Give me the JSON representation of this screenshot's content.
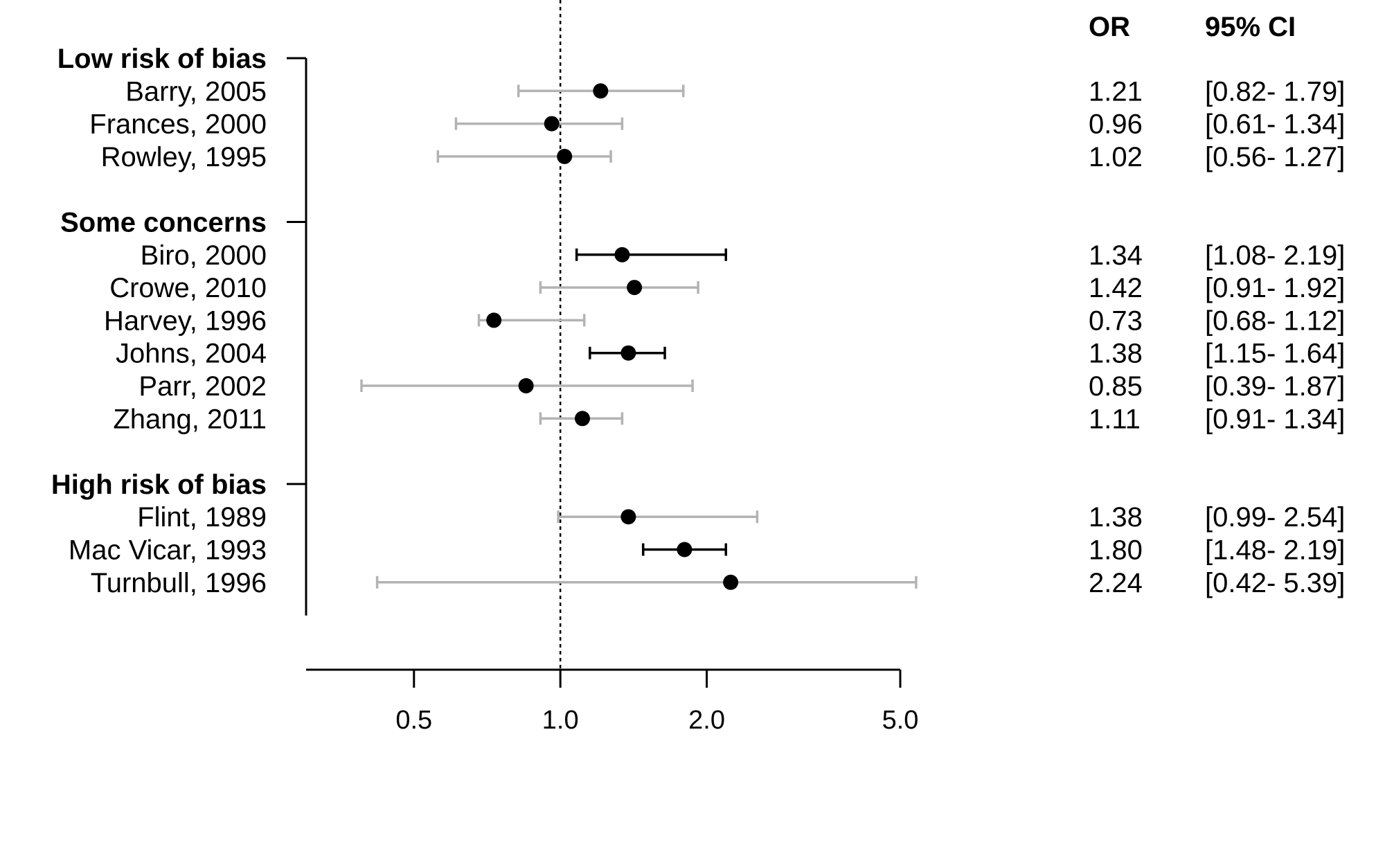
{
  "chart_data": {
    "type": "forest",
    "title": "",
    "xlabel": "",
    "ylabel": "",
    "x_scale": "log",
    "reference_line": 1.0,
    "xlim": [
      0.3,
      5.0
    ],
    "xticks": [
      {
        "value": 0.5,
        "label": "0.5"
      },
      {
        "value": 1.0,
        "label": "1.0"
      },
      {
        "value": 2.0,
        "label": "2.0"
      },
      {
        "value": 5.0,
        "label": "5.0"
      }
    ],
    "columns": {
      "or": "OR",
      "ci": "95% CI"
    },
    "colors": {
      "significant": "#000000",
      "nonsignificant": "#b3b3b3",
      "point": "#000000"
    },
    "groups": [
      {
        "name": "Low risk of bias",
        "studies": [
          {
            "label": "Barry, 2005",
            "or": 1.21,
            "lower": 0.82,
            "upper": 1.79,
            "or_text": "1.21",
            "ci_text": "[0.82- 1.79]",
            "significant": false
          },
          {
            "label": "Frances, 2000",
            "or": 0.96,
            "lower": 0.61,
            "upper": 1.34,
            "or_text": "0.96",
            "ci_text": "[0.61- 1.34]",
            "significant": false
          },
          {
            "label": "Rowley, 1995",
            "or": 1.02,
            "lower": 0.56,
            "upper": 1.27,
            "or_text": "1.02",
            "ci_text": "[0.56- 1.27]",
            "significant": false
          }
        ]
      },
      {
        "name": "Some concerns",
        "studies": [
          {
            "label": "Biro, 2000",
            "or": 1.34,
            "lower": 1.08,
            "upper": 2.19,
            "or_text": "1.34",
            "ci_text": "[1.08- 2.19]",
            "significant": true
          },
          {
            "label": "Crowe, 2010",
            "or": 1.42,
            "lower": 0.91,
            "upper": 1.92,
            "or_text": "1.42",
            "ci_text": "[0.91- 1.92]",
            "significant": false
          },
          {
            "label": "Harvey, 1996",
            "or": 0.73,
            "lower": 0.68,
            "upper": 1.12,
            "or_text": "0.73",
            "ci_text": "[0.68- 1.12]",
            "significant": false
          },
          {
            "label": "Johns, 2004",
            "or": 1.38,
            "lower": 1.15,
            "upper": 1.64,
            "or_text": "1.38",
            "ci_text": "[1.15- 1.64]",
            "significant": true
          },
          {
            "label": "Parr, 2002",
            "or": 0.85,
            "lower": 0.39,
            "upper": 1.87,
            "or_text": "0.85",
            "ci_text": "[0.39- 1.87]",
            "significant": false
          },
          {
            "label": "Zhang, 2011",
            "or": 1.11,
            "lower": 0.91,
            "upper": 1.34,
            "or_text": "1.11",
            "ci_text": "[0.91- 1.34]",
            "significant": false
          }
        ]
      },
      {
        "name": "High risk of bias",
        "studies": [
          {
            "label": "Flint, 1989",
            "or": 1.38,
            "lower": 0.99,
            "upper": 2.54,
            "or_text": "1.38",
            "ci_text": "[0.99- 2.54]",
            "significant": false
          },
          {
            "label": "Mac Vicar, 1993",
            "or": 1.8,
            "lower": 1.48,
            "upper": 2.19,
            "or_text": "1.80",
            "ci_text": "[1.48- 2.19]",
            "significant": true
          },
          {
            "label": "Turnbull, 1996",
            "or": 2.24,
            "lower": 0.42,
            "upper": 5.39,
            "or_text": "2.24",
            "ci_text": "[0.42- 5.39]",
            "significant": false
          }
        ]
      }
    ]
  }
}
